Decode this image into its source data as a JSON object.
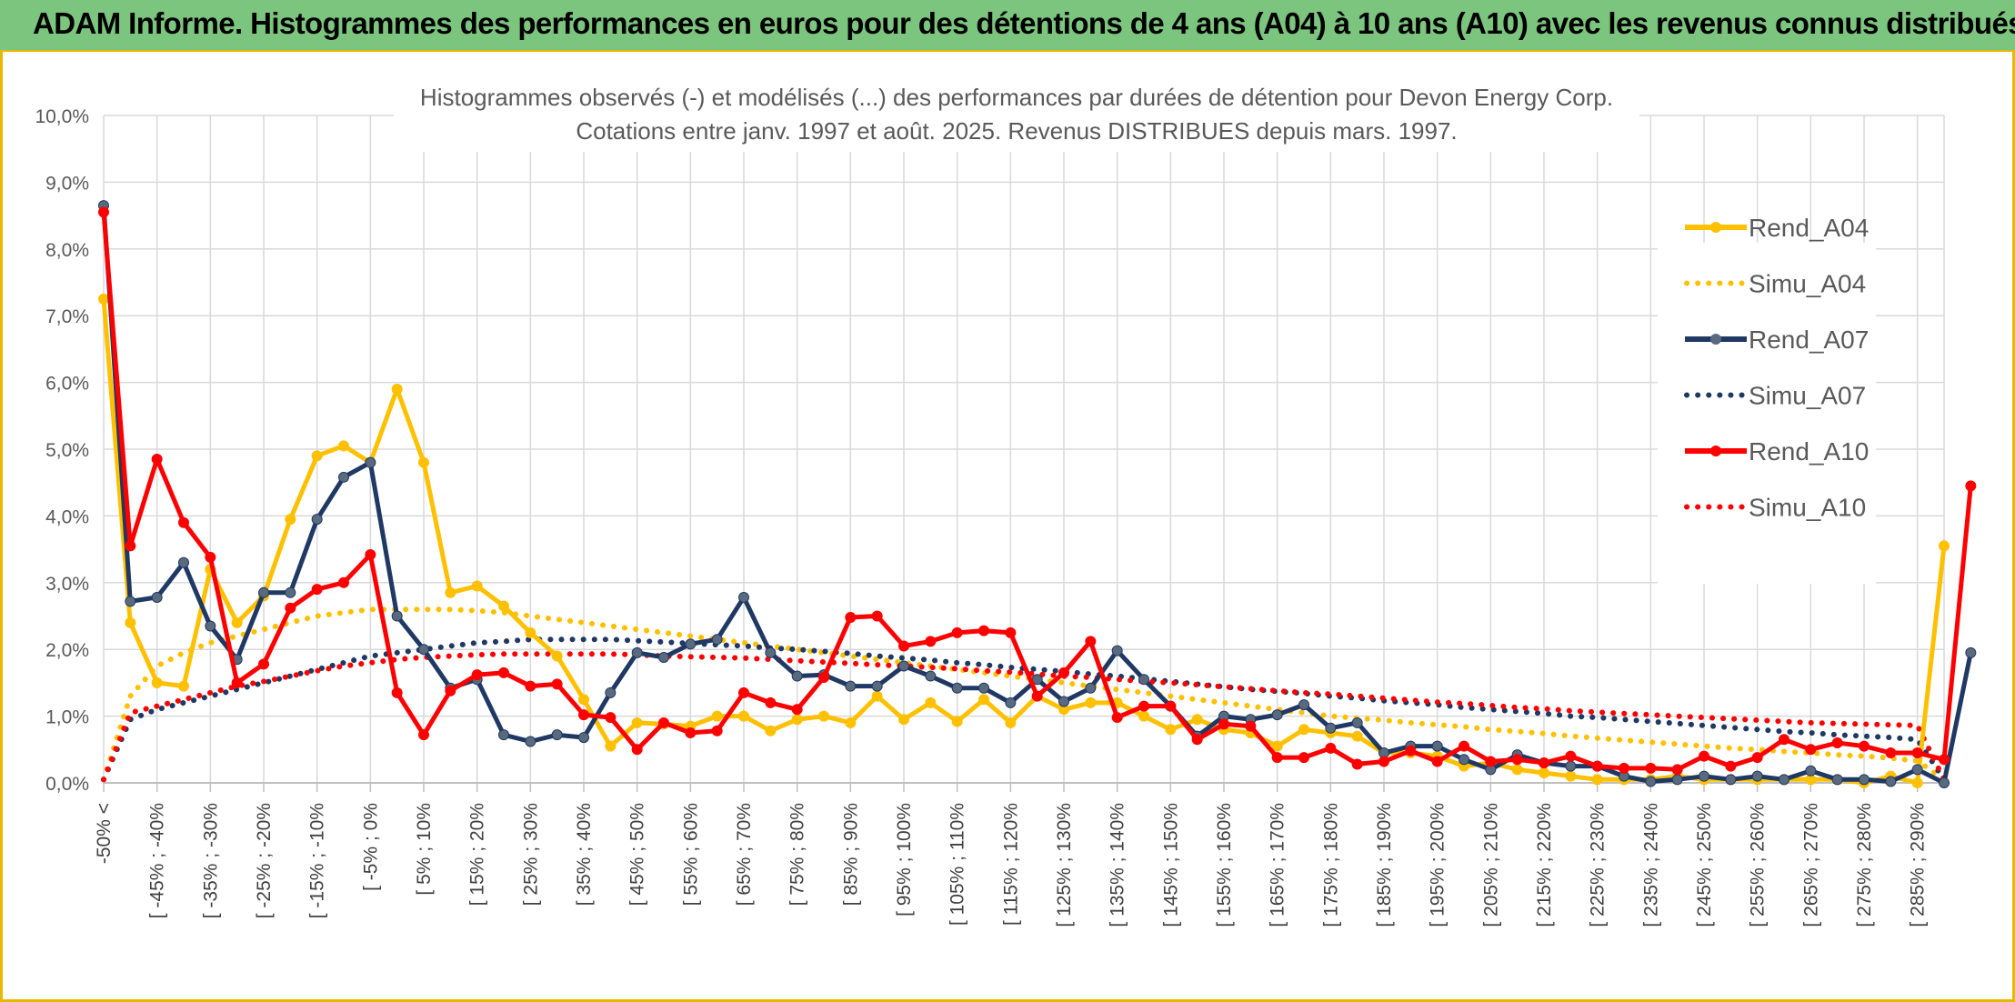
{
  "header": {
    "title": "ADAM Informe. Histogrammes des performances en euros pour des détentions de 4 ans (A04) à 10 ans (A10) avec les revenus connus distribués"
  },
  "colors": {
    "banner": "#7cc57e",
    "frame": "#e8b800",
    "A04": "#ffc000",
    "A07": "#1f3864",
    "A10": "#ff0000",
    "grid": "#d9d9d9"
  },
  "chart_data": {
    "type": "line",
    "title": "Histogrammes observés (-) et modélisés (...) des performances par durées de détention pour Devon Energy Corp.",
    "subtitle": "Cotations entre janv. 1997 et août. 2025. Revenus DISTRIBUES depuis mars. 1997.",
    "xlabel": "",
    "ylabel": "",
    "ylim": [
      0,
      10
    ],
    "y_ticks": [
      "0,0%",
      "1,0%",
      "2,0%",
      "3,0%",
      "4,0%",
      "5,0%",
      "6,0%",
      "7,0%",
      "8,0%",
      "9,0%",
      "10,0%"
    ],
    "grid": true,
    "legend_position": "top-right",
    "x_tick_labels": [
      "-50% <",
      "[ -45% ; -40%",
      "[ -35% ; -30%",
      "[ -25% ; -20%",
      "[ -15% ; -10%",
      "[ -5% ; 0%",
      "[ 5% ; 10%",
      "[ 15% ; 20%",
      "[ 25% ; 30%",
      "[ 35% ; 40%",
      "[ 45% ; 50%",
      "[ 55% ; 60%",
      "[ 65% ; 70%",
      "[ 75% ; 80%",
      "[ 85% ; 90%",
      "[ 95% ; 100%",
      "[ 105% ; 110%",
      "[ 115% ; 120%",
      "[ 125% ; 130%",
      "[ 135% ; 140%",
      "[ 145% ; 150%",
      "[ 155% ; 160%",
      "[ 165% ; 170%",
      "[ 175% ; 180%",
      "[ 185% ; 190%",
      "[ 195% ; 200%",
      "[ 205% ; 210%",
      "[ 215% ; 220%",
      "[ 225% ; 230%",
      "[ 235% ; 240%",
      "[ 245% ; 250%",
      "[ 255% ; 260%",
      "[ 265% ; 270%",
      "[ 275% ; 280%",
      "[ 285% ; 290%"
    ],
    "series": [
      {
        "name": "Rend_A04",
        "style": "solid",
        "color": "#ffc000",
        "values": [
          7.25,
          2.4,
          1.5,
          1.45,
          3.2,
          2.4,
          2.8,
          3.95,
          4.9,
          5.05,
          4.8,
          5.9,
          4.8,
          2.85,
          2.95,
          2.65,
          2.25,
          1.9,
          1.25,
          0.55,
          0.9,
          0.88,
          0.85,
          1.0,
          1.0,
          0.78,
          0.95,
          1.0,
          0.9,
          1.3,
          0.95,
          1.2,
          0.92,
          1.25,
          0.9,
          1.3,
          1.1,
          1.2,
          1.2,
          1.0,
          0.8,
          0.95,
          0.8,
          0.75,
          0.55,
          0.8,
          0.75,
          0.7,
          0.45,
          0.45,
          0.4,
          0.25,
          0.3,
          0.2,
          0.15,
          0.1,
          0.05,
          0.05,
          0.05,
          0.1,
          0.05,
          0.05,
          0.05,
          0.05,
          0.05,
          0.05,
          0.0,
          0.1,
          0.0,
          3.55
        ]
      },
      {
        "name": "Simu_A04",
        "style": "dotted",
        "color": "#ffc000",
        "values": [
          0.05,
          1.3,
          1.75,
          1.95,
          2.1,
          2.2,
          2.3,
          2.4,
          2.5,
          2.55,
          2.6,
          2.6,
          2.6,
          2.6,
          2.58,
          2.55,
          2.5,
          2.45,
          2.4,
          2.35,
          2.3,
          2.25,
          2.2,
          2.15,
          2.1,
          2.05,
          2.0,
          1.95,
          1.9,
          1.85,
          1.8,
          1.75,
          1.7,
          1.65,
          1.6,
          1.55,
          1.5,
          1.45,
          1.4,
          1.35,
          1.3,
          1.25,
          1.2,
          1.15,
          1.1,
          1.05,
          1.0,
          0.97,
          0.94,
          0.9,
          0.87,
          0.84,
          0.8,
          0.77,
          0.74,
          0.7,
          0.67,
          0.64,
          0.61,
          0.58,
          0.55,
          0.52,
          0.5,
          0.47,
          0.45,
          0.42,
          0.4,
          0.37,
          0.33,
          0.05
        ]
      },
      {
        "name": "Rend_A07",
        "style": "solid",
        "color": "#1f3864",
        "values": [
          8.65,
          2.72,
          2.78,
          3.3,
          2.35,
          1.85,
          2.85,
          2.85,
          3.95,
          4.58,
          4.8,
          2.5,
          2.0,
          1.42,
          1.55,
          0.72,
          0.62,
          0.72,
          0.68,
          1.35,
          1.95,
          1.88,
          2.08,
          2.15,
          2.78,
          1.95,
          1.6,
          1.62,
          1.45,
          1.45,
          1.75,
          1.6,
          1.42,
          1.42,
          1.2,
          1.55,
          1.22,
          1.42,
          1.98,
          1.55,
          1.15,
          0.7,
          1.0,
          0.95,
          1.02,
          1.17,
          0.82,
          0.9,
          0.45,
          0.55,
          0.55,
          0.35,
          0.2,
          0.42,
          0.3,
          0.25,
          0.25,
          0.1,
          0.02,
          0.05,
          0.1,
          0.05,
          0.1,
          0.05,
          0.18,
          0.05,
          0.05,
          0.02,
          0.2,
          0.0,
          1.95
        ]
      },
      {
        "name": "Simu_A07",
        "style": "dotted",
        "color": "#1f3864",
        "values": [
          0.05,
          0.95,
          1.1,
          1.2,
          1.3,
          1.4,
          1.5,
          1.6,
          1.7,
          1.8,
          1.9,
          1.95,
          2.0,
          2.05,
          2.1,
          2.12,
          2.15,
          2.15,
          2.15,
          2.15,
          2.13,
          2.11,
          2.09,
          2.07,
          2.05,
          2.02,
          2.0,
          1.97,
          1.94,
          1.9,
          1.87,
          1.84,
          1.8,
          1.77,
          1.73,
          1.7,
          1.67,
          1.63,
          1.6,
          1.56,
          1.52,
          1.48,
          1.44,
          1.4,
          1.37,
          1.34,
          1.3,
          1.27,
          1.23,
          1.2,
          1.17,
          1.13,
          1.1,
          1.07,
          1.04,
          1.0,
          0.98,
          0.95,
          0.92,
          0.89,
          0.86,
          0.83,
          0.8,
          0.77,
          0.75,
          0.72,
          0.7,
          0.68,
          0.65,
          0.05
        ]
      },
      {
        "name": "Rend_A10",
        "style": "solid",
        "color": "#ff0000",
        "values": [
          8.55,
          3.55,
          4.85,
          3.9,
          3.38,
          1.5,
          1.78,
          2.62,
          2.9,
          3.0,
          3.42,
          1.35,
          0.72,
          1.38,
          1.62,
          1.65,
          1.45,
          1.48,
          1.02,
          0.98,
          0.5,
          0.9,
          0.75,
          0.78,
          1.35,
          1.2,
          1.1,
          1.58,
          2.48,
          2.5,
          2.05,
          2.12,
          2.25,
          2.28,
          2.25,
          1.3,
          1.65,
          2.12,
          0.98,
          1.15,
          1.15,
          0.65,
          0.88,
          0.85,
          0.38,
          0.38,
          0.52,
          0.28,
          0.32,
          0.48,
          0.32,
          0.55,
          0.32,
          0.35,
          0.3,
          0.4,
          0.25,
          0.22,
          0.22,
          0.2,
          0.4,
          0.25,
          0.38,
          0.65,
          0.5,
          0.6,
          0.55,
          0.45,
          0.45,
          0.35,
          4.45
        ]
      },
      {
        "name": "Simu_A10",
        "style": "dotted",
        "color": "#ff0000",
        "values": [
          0.05,
          1.05,
          1.15,
          1.25,
          1.35,
          1.45,
          1.52,
          1.6,
          1.68,
          1.75,
          1.8,
          1.85,
          1.88,
          1.9,
          1.92,
          1.93,
          1.93,
          1.93,
          1.93,
          1.93,
          1.92,
          1.9,
          1.89,
          1.88,
          1.87,
          1.85,
          1.83,
          1.81,
          1.79,
          1.77,
          1.75,
          1.73,
          1.71,
          1.68,
          1.66,
          1.63,
          1.6,
          1.58,
          1.55,
          1.52,
          1.5,
          1.47,
          1.44,
          1.41,
          1.38,
          1.35,
          1.33,
          1.3,
          1.27,
          1.24,
          1.21,
          1.19,
          1.16,
          1.13,
          1.11,
          1.08,
          1.06,
          1.04,
          1.02,
          1.0,
          0.98,
          0.96,
          0.94,
          0.92,
          0.9,
          0.89,
          0.88,
          0.87,
          0.86,
          0.05
        ]
      }
    ]
  }
}
